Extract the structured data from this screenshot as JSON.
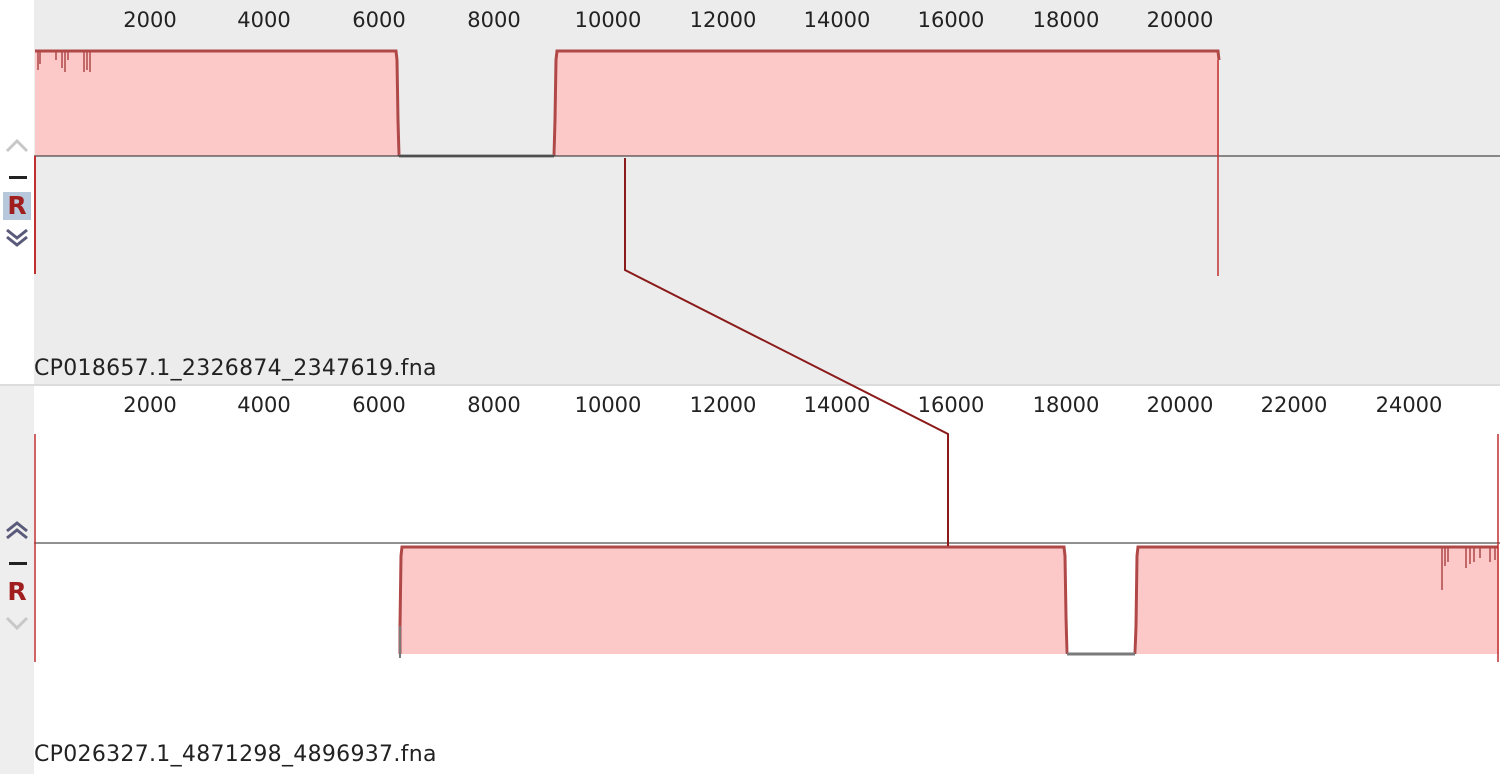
{
  "colors": {
    "block_fill": "#fcc8c8",
    "block_border": "#b04848",
    "gap_line": "#7a7a7a",
    "connector": "#8b1a1a",
    "background_top": "#ececec",
    "background_bottom": "#ffffff"
  },
  "top_track": {
    "sequence_name": "CP018657.1_2326874_2347619.fna",
    "ruler_ticks": [
      "2000",
      "4000",
      "6000",
      "8000",
      "10000",
      "12000",
      "14000",
      "16000",
      "18000",
      "20000"
    ],
    "controls": {
      "up_icon": "chevron-up-icon",
      "minus_label": "–",
      "r_label": "R",
      "down_icon": "double-chevron-down-icon"
    }
  },
  "bottom_track": {
    "sequence_name": "CP026327.1_4871298_4896937.fna",
    "ruler_ticks": [
      "2000",
      "4000",
      "6000",
      "8000",
      "10000",
      "12000",
      "14000",
      "16000",
      "18000",
      "20000",
      "22000",
      "24000"
    ],
    "controls": {
      "up_icon": "double-chevron-up-icon",
      "minus_label": "–",
      "r_label": "R",
      "down_icon": "chevron-down-icon"
    }
  }
}
